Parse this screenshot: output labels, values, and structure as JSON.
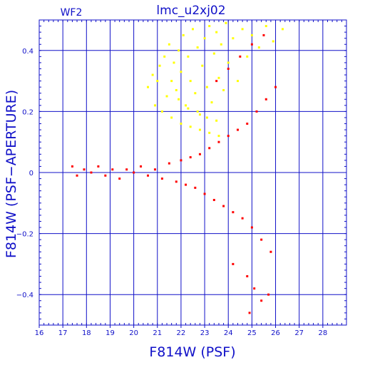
{
  "chart_data": {
    "type": "scatter",
    "title": "lmc_u2xj02",
    "panel_label": "WF2",
    "xlabel": "F814W (PSF)",
    "ylabel": "F814W (PSF−APERTURE)",
    "xlim": [
      16,
      29
    ],
    "ylim": [
      -0.5,
      0.5
    ],
    "x_ticks": [
      16,
      17,
      18,
      19,
      20,
      21,
      22,
      23,
      24,
      25,
      26,
      27,
      28
    ],
    "y_ticks": [
      0.4,
      0.2,
      0,
      -0.2,
      -0.4
    ],
    "y_tick_labels": [
      "0.4",
      "0.2",
      "0",
      "−0.2",
      "−0.4"
    ],
    "grid": true,
    "colors": {
      "axes": "#1010c8",
      "grid": "#1010c8",
      "red_series": "#ff0000",
      "yellow_series": "#ffff00"
    },
    "series": [
      {
        "color": "#ffff00",
        "points": [
          [
            20.6,
            0.28
          ],
          [
            20.8,
            0.32
          ],
          [
            21.0,
            0.3
          ],
          [
            21.1,
            0.35
          ],
          [
            21.3,
            0.38
          ],
          [
            21.4,
            0.25
          ],
          [
            21.5,
            0.42
          ],
          [
            21.6,
            0.3
          ],
          [
            21.7,
            0.36
          ],
          [
            21.8,
            0.27
          ],
          [
            21.9,
            0.4
          ],
          [
            22.0,
            0.33
          ],
          [
            22.1,
            0.45
          ],
          [
            22.2,
            0.22
          ],
          [
            22.3,
            0.38
          ],
          [
            22.4,
            0.3
          ],
          [
            22.5,
            0.47
          ],
          [
            22.6,
            0.26
          ],
          [
            22.7,
            0.41
          ],
          [
            22.8,
            0.19
          ],
          [
            22.9,
            0.35
          ],
          [
            23.0,
            0.44
          ],
          [
            23.1,
            0.28
          ],
          [
            23.2,
            0.48
          ],
          [
            23.3,
            0.23
          ],
          [
            23.4,
            0.39
          ],
          [
            23.5,
            0.46
          ],
          [
            23.6,
            0.31
          ],
          [
            23.7,
            0.42
          ],
          [
            23.8,
            0.27
          ],
          [
            23.9,
            0.49
          ],
          [
            24.0,
            0.36
          ],
          [
            24.2,
            0.44
          ],
          [
            24.4,
            0.3
          ],
          [
            24.6,
            0.47
          ],
          [
            24.8,
            0.38
          ],
          [
            25.0,
            0.45
          ],
          [
            25.3,
            0.41
          ],
          [
            25.6,
            0.48
          ],
          [
            25.9,
            0.43
          ],
          [
            26.3,
            0.47
          ],
          [
            21.2,
            0.2
          ],
          [
            21.6,
            0.18
          ],
          [
            22.0,
            0.16
          ],
          [
            22.4,
            0.15
          ],
          [
            22.8,
            0.14
          ],
          [
            23.2,
            0.13
          ],
          [
            23.6,
            0.12
          ],
          [
            21.9,
            0.24
          ],
          [
            22.3,
            0.21
          ],
          [
            22.7,
            0.2
          ],
          [
            23.1,
            0.18
          ],
          [
            23.5,
            0.17
          ],
          [
            20.9,
            0.22
          ]
        ]
      },
      {
        "color": "#ff0000",
        "points": [
          [
            17.4,
            0.02
          ],
          [
            17.6,
            -0.01
          ],
          [
            17.9,
            0.01
          ],
          [
            18.2,
            0.0
          ],
          [
            18.5,
            0.02
          ],
          [
            18.8,
            -0.01
          ],
          [
            19.1,
            0.01
          ],
          [
            19.4,
            -0.02
          ],
          [
            19.7,
            0.01
          ],
          [
            20.0,
            0.0
          ],
          [
            20.3,
            0.02
          ],
          [
            20.6,
            -0.01
          ],
          [
            20.9,
            0.01
          ],
          [
            21.2,
            -0.02
          ],
          [
            21.5,
            0.03
          ],
          [
            21.8,
            -0.03
          ],
          [
            22.0,
            0.04
          ],
          [
            22.2,
            -0.04
          ],
          [
            22.4,
            0.05
          ],
          [
            22.6,
            -0.05
          ],
          [
            22.8,
            0.06
          ],
          [
            23.0,
            -0.07
          ],
          [
            23.2,
            0.08
          ],
          [
            23.4,
            -0.09
          ],
          [
            23.6,
            0.1
          ],
          [
            23.8,
            -0.11
          ],
          [
            24.0,
            0.12
          ],
          [
            24.2,
            -0.13
          ],
          [
            24.4,
            0.14
          ],
          [
            24.6,
            -0.15
          ],
          [
            24.8,
            0.16
          ],
          [
            25.0,
            -0.18
          ],
          [
            25.2,
            0.2
          ],
          [
            25.4,
            -0.22
          ],
          [
            25.6,
            0.24
          ],
          [
            25.8,
            -0.26
          ],
          [
            26.0,
            0.28
          ],
          [
            23.5,
            0.3
          ],
          [
            24.0,
            0.34
          ],
          [
            24.5,
            0.38
          ],
          [
            25.0,
            0.42
          ],
          [
            25.5,
            0.45
          ],
          [
            24.2,
            -0.3
          ],
          [
            24.8,
            -0.34
          ],
          [
            25.1,
            -0.38
          ],
          [
            25.4,
            -0.42
          ],
          [
            25.7,
            -0.4
          ],
          [
            24.9,
            -0.46
          ]
        ]
      }
    ]
  }
}
